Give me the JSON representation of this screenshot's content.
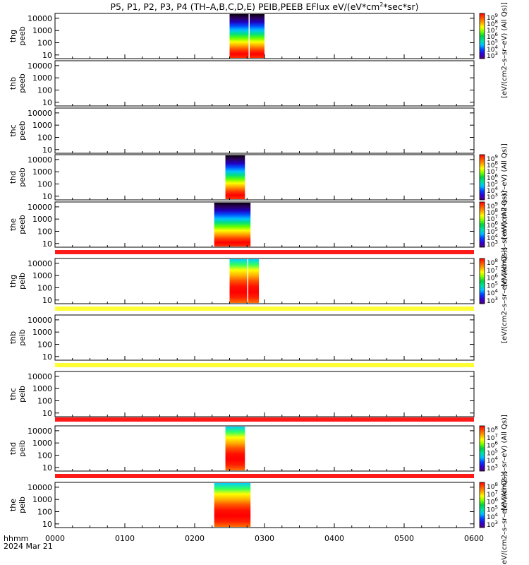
{
  "chart_data": {
    "type": "heatmap",
    "title": "P5, P1, P2, P3, P4 (TH–A,B,C,D,E) PEIB,PEEB EFlux eV/(eV*cm2*sec*sr)",
    "title_parts": {
      "main": "P5, P1, P2, P3, P4 (TH–A,B,C,D,E) PEIB,PEEB EFlux eV/(eV*cm",
      "sup": "2",
      "tail": "*sec*sr)"
    },
    "x_axis": {
      "tick_labels": [
        "0000",
        "0100",
        "0200",
        "0300",
        "0400",
        "0500",
        "0600"
      ],
      "xlim_hours": [
        0,
        6
      ],
      "label_line1": "hhmm",
      "label_line2": "2024 Mar 21"
    },
    "y_tick_labels": [
      "10000",
      "1000",
      "100",
      "10"
    ],
    "y_scale": "log",
    "ylim": [
      5,
      25000
    ],
    "panels": [
      {
        "label_top": "thg",
        "label_bottom": "peeb",
        "t_start": 2.5,
        "t_end": 3.0,
        "split_at": 2.78,
        "profile": "electron",
        "colorbar": true
      },
      {
        "label_top": "thb",
        "label_bottom": "peeb",
        "t_start": null,
        "t_end": null,
        "profile": "none",
        "colorbar": false
      },
      {
        "label_top": "thc",
        "label_bottom": "peeb",
        "t_start": null,
        "t_end": null,
        "profile": "none",
        "colorbar": false
      },
      {
        "label_top": "thd",
        "label_bottom": "peeb",
        "t_start": 2.44,
        "t_end": 2.72,
        "profile": "electron",
        "colorbar": true
      },
      {
        "label_top": "the",
        "label_bottom": "peeb",
        "t_start": 2.28,
        "t_end": 2.8,
        "profile": "electron",
        "colorbar": true
      },
      {
        "label_top": "thg",
        "label_bottom": "peib",
        "t_start": 2.5,
        "t_end": 2.92,
        "split_at": 2.76,
        "profile": "ion",
        "colorbar": true,
        "bar": "#ff1a1a"
      },
      {
        "label_top": "thb",
        "label_bottom": "peib",
        "t_start": null,
        "t_end": null,
        "profile": "none",
        "colorbar": false,
        "bar": "#ffff33"
      },
      {
        "label_top": "thc",
        "label_bottom": "peib",
        "t_start": null,
        "t_end": null,
        "profile": "none",
        "colorbar": false,
        "bar": "#ffff33"
      },
      {
        "label_top": "thd",
        "label_bottom": "peib",
        "t_start": 2.44,
        "t_end": 2.72,
        "profile": "ion",
        "colorbar": true,
        "bar": "#ff1a1a"
      },
      {
        "label_top": "the",
        "label_bottom": "peib",
        "t_start": 2.28,
        "t_end": 2.8,
        "profile": "ion",
        "colorbar": true,
        "bar": "#ff1a1a"
      }
    ],
    "colorbars": [
      {
        "ticks": [
          "10",
          "10",
          "10",
          "10",
          "10",
          "10",
          "10"
        ],
        "exps": [
          "9",
          "8",
          "7",
          "6",
          "5",
          "4",
          "3"
        ],
        "label": "[eV/(cm2–s–sr–eV) (All Qs)]"
      },
      {
        "ticks": [
          "10",
          "10",
          "10",
          "10",
          "10",
          "10",
          "10"
        ],
        "exps": [
          "9",
          "8",
          "7",
          "6",
          "5",
          "4",
          "3"
        ],
        "label": "[eV/(cm2–s–sr–eV) (All Qs)]"
      },
      {
        "ticks": [
          "10",
          "10",
          "10",
          "10",
          "10",
          "10",
          "10"
        ],
        "exps": [
          "9",
          "8",
          "7",
          "6",
          "5",
          "4",
          "3"
        ],
        "label": "[eV/(cm2–s–sr–eV) (All Qs)]"
      },
      {
        "ticks": [
          "10",
          "10",
          "10",
          "10",
          "10",
          "10"
        ],
        "exps": [
          "8",
          "7",
          "6",
          "5",
          "4",
          "3"
        ],
        "label": "[eV/(cm2–s–sr–eV) (All Qs)]"
      },
      {
        "ticks": [
          "10",
          "10",
          "10",
          "10",
          "10",
          "10"
        ],
        "exps": [
          "8",
          "7",
          "6",
          "5",
          "4",
          "3"
        ],
        "label": "[eV/(cm2–s–sr–eV) (All Qs)]"
      },
      {
        "ticks": [
          "10",
          "10",
          "10",
          "10",
          "10",
          "10"
        ],
        "exps": [
          "8",
          "7",
          "6",
          "5",
          "4",
          "3"
        ],
        "label": "[eV/(cm2–s–sr–eV) (All Qs)]"
      }
    ],
    "grid": false,
    "colormap": [
      "#500070",
      "#3000d0",
      "#0040ff",
      "#00c0ff",
      "#00e0a0",
      "#00d040",
      "#80ff00",
      "#ffff00",
      "#ffa000",
      "#ff5000",
      "#ff0000"
    ]
  }
}
